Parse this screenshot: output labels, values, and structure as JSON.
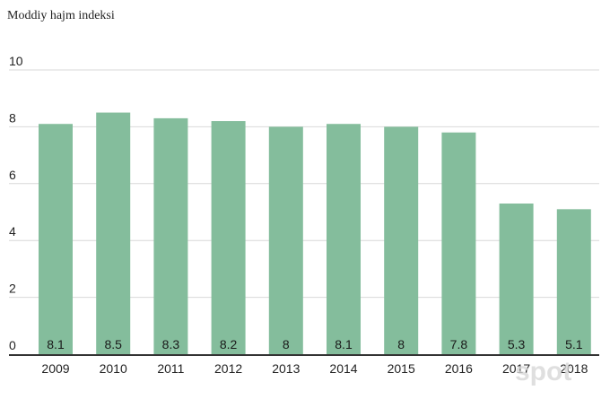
{
  "watermark": "spot",
  "colors": {
    "bar": "#84bd9c",
    "grid": "#d9d9d9",
    "axis": "#333333"
  },
  "chart_data": {
    "type": "bar",
    "title": "Moddiy hajm indeksi",
    "xlabel": "",
    "ylabel": "",
    "categories": [
      "2009",
      "2010",
      "2011",
      "2012",
      "2013",
      "2014",
      "2015",
      "2016",
      "2017",
      "2018"
    ],
    "values": [
      8.1,
      8.5,
      8.3,
      8.2,
      8,
      8.1,
      8,
      7.8,
      5.3,
      5.1
    ],
    "data_labels": [
      "8.1",
      "8.5",
      "8.3",
      "8.2",
      "8",
      "8.1",
      "8",
      "7.8",
      "5.3",
      "5.1"
    ],
    "ylim": [
      0,
      10
    ],
    "yticks": [
      "0",
      "2",
      "4",
      "6",
      "8",
      "10"
    ],
    "grid": true,
    "legend": "none"
  }
}
